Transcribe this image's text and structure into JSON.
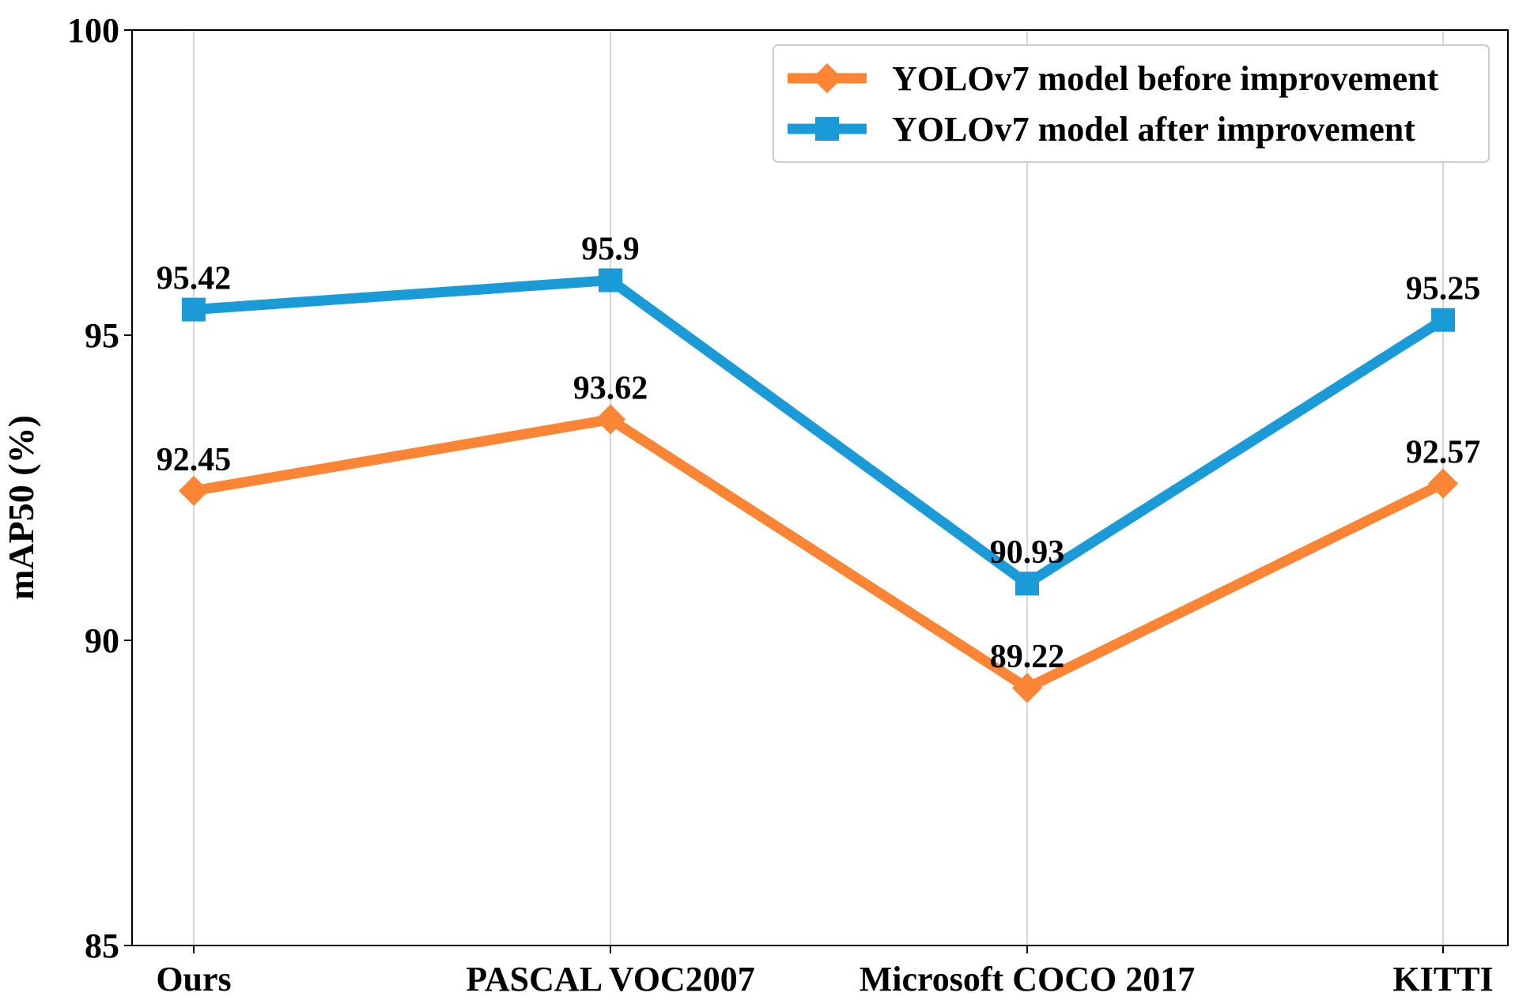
{
  "chart_data": {
    "type": "line",
    "title": "",
    "xlabel": "",
    "ylabel": "mAP50 (%)",
    "ylim": [
      85,
      100
    ],
    "yticks": [
      85,
      90,
      95,
      100
    ],
    "categories": [
      "Ours",
      "PASCAL VOC2007",
      "Microsoft COCO 2017",
      "KITTI"
    ],
    "grid": "vertical",
    "legend_position": "top-right",
    "series": [
      {
        "name": "YOLOv7 model before improvement",
        "values": [
          92.45,
          93.62,
          89.22,
          92.57
        ],
        "labels": [
          "92.45",
          "93.62",
          "89.22",
          "92.57"
        ],
        "color": "#fb8535",
        "marker": "diamond"
      },
      {
        "name": "YOLOv7 model after improvement",
        "values": [
          95.42,
          95.9,
          90.93,
          95.25
        ],
        "labels": [
          "95.42",
          "95.9",
          "90.93",
          "95.25"
        ],
        "color": "#1a9ad6",
        "marker": "square"
      }
    ]
  }
}
